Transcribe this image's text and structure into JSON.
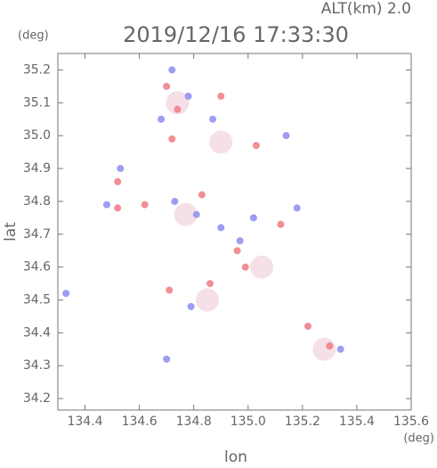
{
  "chart_data": {
    "type": "scatter",
    "title": "2019/12/16 17:33:30",
    "subtitle": "ALT(km) 2.0",
    "x_label": "lon",
    "y_label": "lat",
    "x_unit": "(deg)",
    "y_unit": "(deg)",
    "xlim": [
      134.3,
      135.6
    ],
    "ylim": [
      34.165,
      35.25
    ],
    "xticks": [
      134.4,
      134.6,
      134.8,
      {
        "value": 135.0,
        "label": "135.0"
      },
      135.2,
      135.4,
      135.6
    ],
    "yticks": [
      34.2,
      34.3,
      34.4,
      34.5,
      34.6,
      34.7,
      34.8,
      34.9,
      {
        "value": 35.0,
        "label": "35.0"
      },
      35.1,
      35.2
    ],
    "series": [
      {
        "color": "#f3dde3",
        "x": [
          134.9,
          134.77,
          134.85,
          135.28,
          135.05,
          134.74
        ],
        "values": [
          34.98,
          34.76,
          34.5,
          34.35,
          34.6,
          35.1
        ]
      },
      {
        "color": "#f07a84",
        "x": [
          134.7,
          134.74,
          134.9,
          134.72,
          134.52,
          134.52,
          134.62,
          134.83,
          134.96,
          135.12,
          134.71,
          134.86,
          135.22,
          135.3,
          135.03,
          134.99
        ],
        "values": [
          35.15,
          35.08,
          35.12,
          34.99,
          34.86,
          34.78,
          34.79,
          34.82,
          34.65,
          34.73,
          34.53,
          34.55,
          34.42,
          34.36,
          34.97,
          34.6
        ]
      },
      {
        "color": "#8c8cf2",
        "x": [
          134.72,
          134.78,
          134.68,
          134.87,
          135.14,
          134.53,
          134.48,
          134.73,
          134.81,
          134.9,
          135.02,
          135.18,
          134.33,
          134.7,
          134.97,
          135.34,
          134.79
        ],
        "values": [
          35.2,
          35.12,
          35.05,
          35.05,
          35.0,
          34.9,
          34.79,
          34.8,
          34.76,
          34.72,
          34.75,
          34.78,
          34.52,
          34.32,
          34.68,
          34.35,
          34.48
        ]
      }
    ]
  }
}
